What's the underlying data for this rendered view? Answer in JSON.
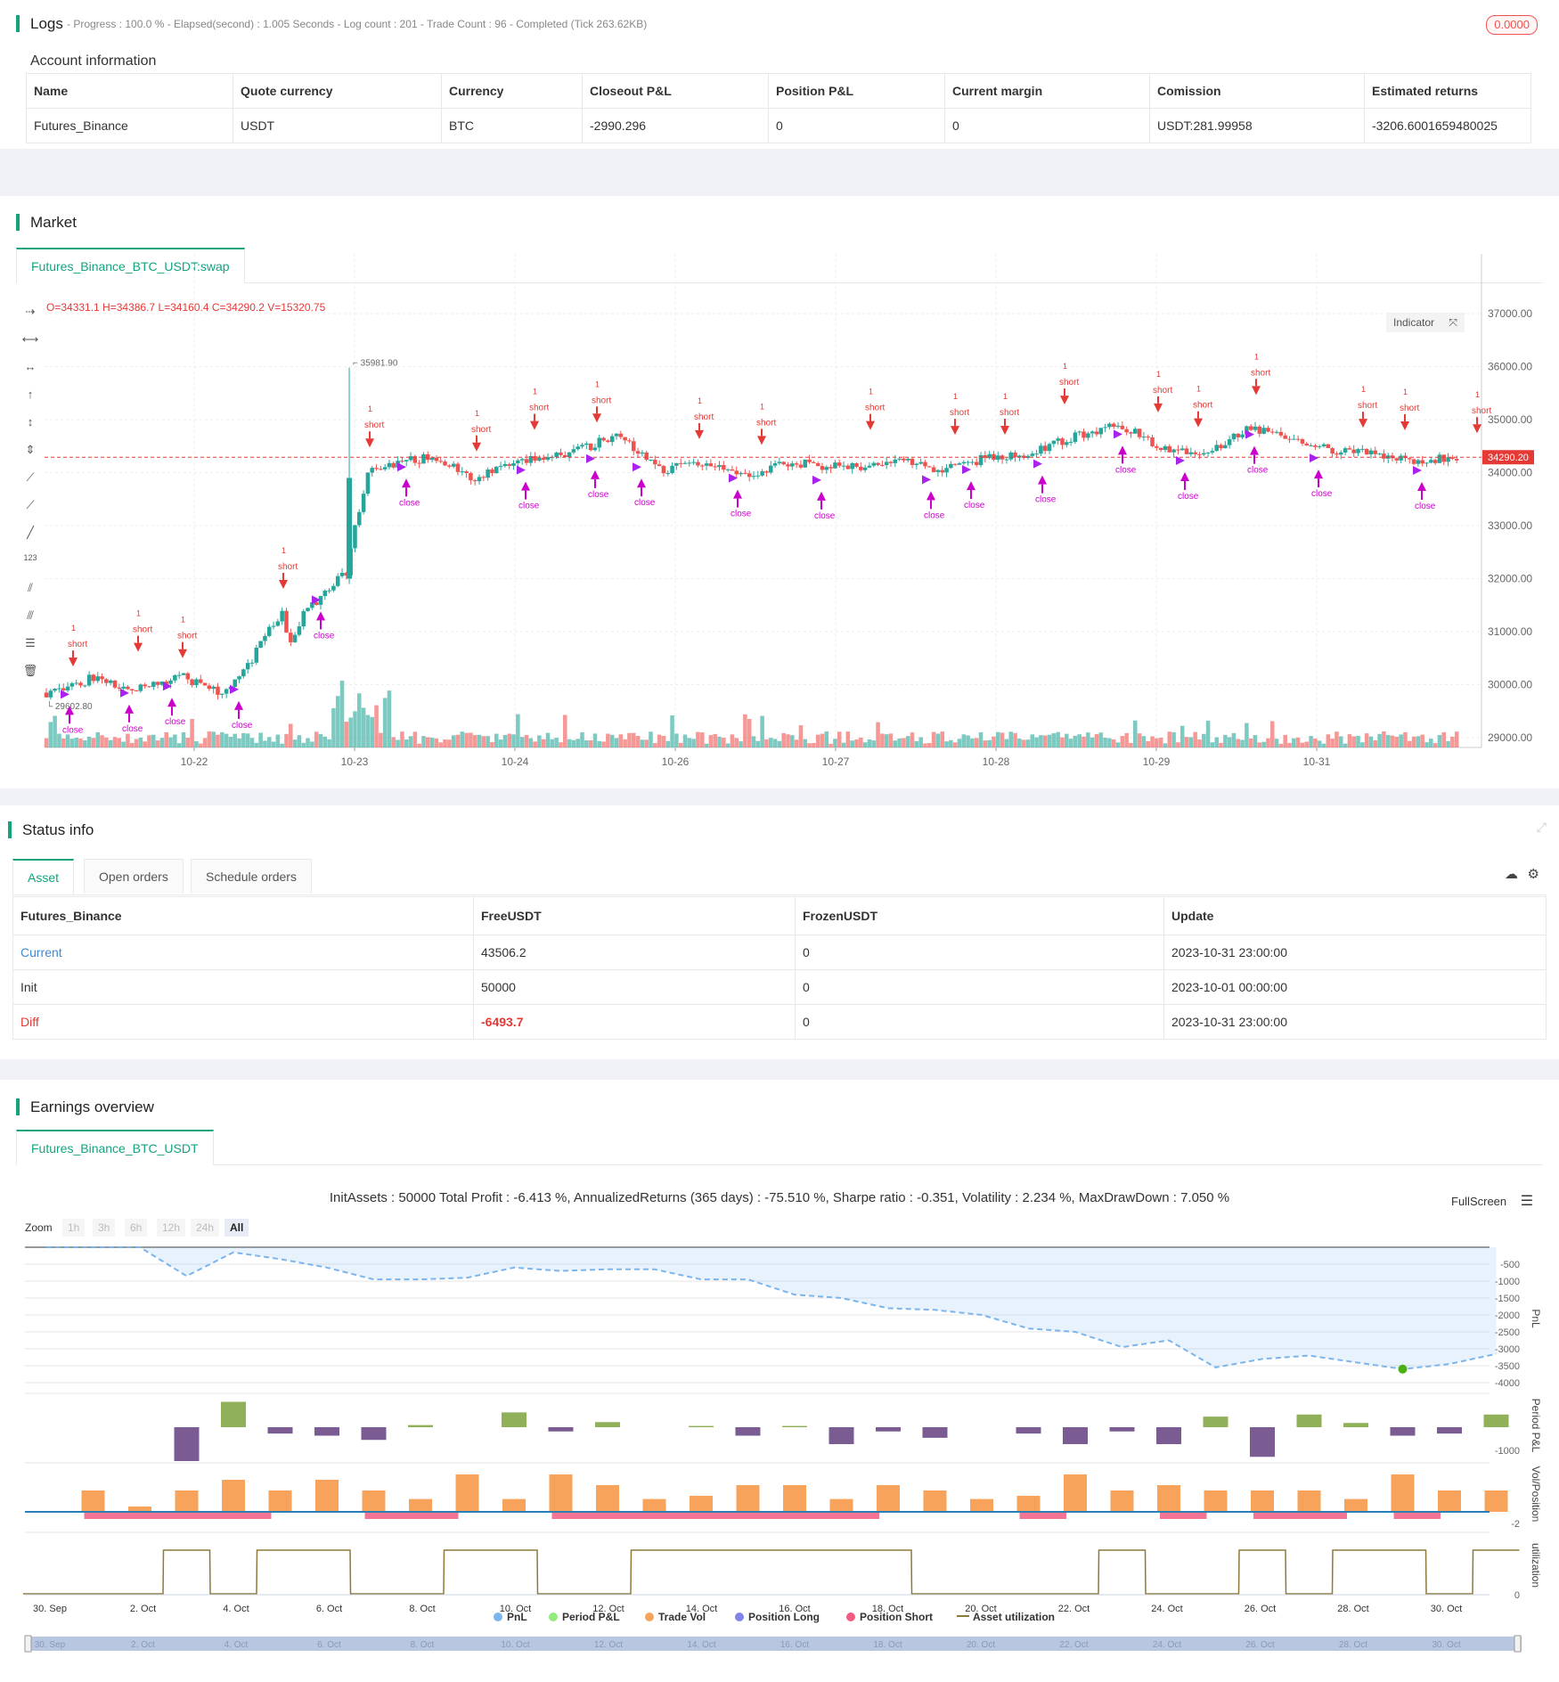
{
  "logs": {
    "title": "Logs",
    "status_line": "- Progress : 100.0 % - Elapsed(second) : 1.005  Seconds - Log count : 201 - Trade Count : 96 - Completed (Tick 263.62KB)",
    "badge": "0.0000",
    "account_title": "Account information",
    "headers": [
      "Name",
      "Quote currency",
      "Currency",
      "Closeout P&L",
      "Position P&L",
      "Current margin",
      "Comission",
      "Estimated returns"
    ],
    "row": [
      "Futures_Binance",
      "USDT",
      "BTC",
      "-2990.296",
      "0",
      "0",
      "USDT:281.99958",
      "-3206.6001659480025"
    ]
  },
  "market": {
    "title": "Market",
    "tab": "Futures_Binance_BTC_USDT:swap",
    "ohlc": "O=34331.1 H=34386.7 L=34160.4 C=34290.2 V=15320.75",
    "indicator_btn": "Indicator",
    "price_tag": "34290.20",
    "high_label": "35981.90",
    "low_label": "29602.80",
    "y_ticks": [
      "37000.00",
      "36000.00",
      "35000.00",
      "34000.00",
      "33000.00",
      "32000.00",
      "31000.00",
      "30000.00",
      "29000.00"
    ],
    "x_ticks": [
      "10-22",
      "10-23",
      "10-24",
      "10-26",
      "10-27",
      "10-28",
      "10-29",
      "10-31"
    ],
    "colors": {
      "up": "#26a69a",
      "down": "#ef5350",
      "signal_short": "#e53935",
      "signal_close": "#cc00cc"
    }
  },
  "status": {
    "title": "Status info",
    "tabs": [
      "Asset",
      "Open orders",
      "Schedule orders"
    ],
    "headers": [
      "Futures_Binance",
      "FreeUSDT",
      "FrozenUSDT",
      "Update"
    ],
    "rows": [
      [
        "Current",
        "43506.2",
        "0",
        "2023-10-31 23:00:00"
      ],
      [
        "Init",
        "50000",
        "0",
        "2023-10-01 00:00:00"
      ],
      [
        "Diff",
        "-6493.7",
        "0",
        "2023-10-31 23:00:00"
      ]
    ]
  },
  "earnings": {
    "title": "Earnings overview",
    "tab": "Futures_Binance_BTC_USDT",
    "summary": "InitAssets : 50000 Total Profit : -6.413 %, AnnualizedReturns (365 days) : -75.510 %, Sharpe ratio : -0.351, Volatility : 2.234 %, MaxDrawDown : 7.050 %",
    "fullscreen": "FullScreen",
    "zoom_label": "Zoom",
    "zoom_options": [
      "1h",
      "3h",
      "6h",
      "12h",
      "24h",
      "All"
    ],
    "pnl_ticks": [
      "-500",
      "-1000",
      "-1500",
      "-2000",
      "-2500",
      "-3000",
      "-3500",
      "-4000"
    ],
    "period_tick": "-1000",
    "vol_tick": "-2",
    "util_tick": "0",
    "axis_titles": [
      "PnL",
      "Period P&L",
      "Vol/Position",
      "utilization"
    ],
    "x_ticks": [
      "30. Sep",
      "2. Oct",
      "4. Oct",
      "6. Oct",
      "8. Oct",
      "10. Oct",
      "12. Oct",
      "14. Oct",
      "16. Oct",
      "18. Oct",
      "20. Oct",
      "22. Oct",
      "24. Oct",
      "26. Oct",
      "28. Oct",
      "30. Oct"
    ],
    "legend": [
      {
        "label": "PnL",
        "color": "#7cb5ec"
      },
      {
        "label": "Period P&L",
        "color": "#90ed7d"
      },
      {
        "label": "Trade Vol",
        "color": "#f7a35c"
      },
      {
        "label": "Position Long",
        "color": "#8085e9"
      },
      {
        "label": "Position Short",
        "color": "#f15c80"
      },
      {
        "label": "Asset utilization",
        "color": "#8d7a3a"
      }
    ]
  },
  "chart_data": {
    "type": "line",
    "series": [
      {
        "name": "PnL",
        "x": [
          "30. Sep",
          "1. Oct",
          "2. Oct",
          "3. Oct",
          "4. Oct",
          "5. Oct",
          "6. Oct",
          "7. Oct",
          "8. Oct",
          "9. Oct",
          "10. Oct",
          "11. Oct",
          "12. Oct",
          "13. Oct",
          "14. Oct",
          "15. Oct",
          "16. Oct",
          "17. Oct",
          "18. Oct",
          "19. Oct",
          "20. Oct",
          "21. Oct",
          "22. Oct",
          "23. Oct",
          "24. Oct",
          "25. Oct",
          "26. Oct",
          "27. Oct",
          "28. Oct",
          "29. Oct",
          "30. Oct",
          "31. Oct"
        ],
        "values": [
          0,
          0,
          0,
          -850,
          -150,
          -350,
          -600,
          -950,
          -950,
          -900,
          -600,
          -700,
          -650,
          -650,
          -950,
          -950,
          -1400,
          -1500,
          -1800,
          -1850,
          -2000,
          -2400,
          -2500,
          -2950,
          -2750,
          -3550,
          -3300,
          -3200,
          -3400,
          -3600,
          -3450,
          -3150
        ]
      },
      {
        "name": "Period P&L",
        "values": [
          0,
          0,
          0,
          -800,
          600,
          -150,
          -200,
          -300,
          50,
          0,
          350,
          -100,
          120,
          0,
          30,
          -200,
          30,
          -400,
          -100,
          -250,
          0,
          -150,
          -400,
          -100,
          -400,
          250,
          -700,
          300,
          100,
          -200,
          -150,
          300
        ]
      },
      {
        "name": "Trade Vol",
        "values": [
          0,
          2,
          0.5,
          2,
          3,
          2,
          3,
          2,
          1.2,
          3.5,
          1.2,
          3.5,
          2.5,
          1.2,
          1.5,
          2.5,
          2.5,
          1.2,
          2.5,
          2,
          1.2,
          1.5,
          3.5,
          2,
          2.5,
          2,
          2,
          2,
          1.2,
          3.5,
          2,
          2
        ]
      },
      {
        "name": "Asset utilization",
        "values": [
          0,
          0,
          0,
          1,
          0,
          1,
          1,
          0,
          0,
          1,
          1,
          0,
          0,
          1,
          1,
          1,
          1,
          1,
          1,
          0,
          0,
          0,
          0,
          1,
          0,
          0,
          1,
          0,
          1,
          1,
          0,
          1
        ]
      }
    ]
  }
}
